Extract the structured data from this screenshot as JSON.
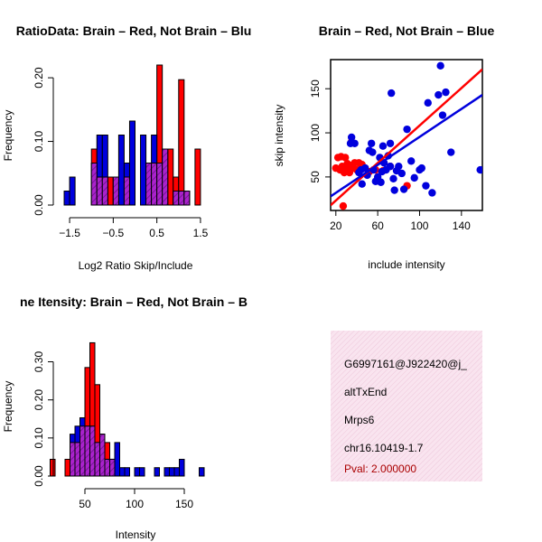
{
  "colors": {
    "red": "#ff0000",
    "blue": "#0000dd",
    "overlap": "#aa22cc",
    "info_bg": "#f7dcea",
    "pval": "#aa0000"
  },
  "chart_data": [
    {
      "type": "bar",
      "subtype": "histogram-overlay",
      "title": "RatioData: Brain – Red, Not Brain – Blu",
      "xlabel": "Log2 Ratio Skip/Include",
      "ylabel": "Frequency",
      "xlim": [
        -1.75,
        1.75
      ],
      "ylim": [
        0,
        0.22
      ],
      "xticks": [
        -1.5,
        -0.5,
        0.5,
        1.5
      ],
      "xtick_labels": [
        "−1.5",
        "−0.5",
        "0.5",
        "1.5"
      ],
      "yticks": [
        0,
        0.1,
        0.2
      ],
      "ytick_labels": [
        "0.00",
        "0.10",
        "0.20"
      ],
      "bin_width": 0.125,
      "series": [
        {
          "name": "Brain",
          "color": "red",
          "bins": [
            [
              -1.0,
              0.088
            ],
            [
              -0.875,
              0.044
            ],
            [
              -0.75,
              0.044
            ],
            [
              -0.625,
              0.044
            ],
            [
              -0.5,
              0.044
            ],
            [
              -0.25,
              0.044
            ],
            [
              0.25,
              0.066
            ],
            [
              0.375,
              0.066
            ],
            [
              0.5,
              0.22
            ],
            [
              0.625,
              0.088
            ],
            [
              0.75,
              0.088
            ],
            [
              0.875,
              0.044
            ],
            [
              1.0,
              0.197
            ],
            [
              1.125,
              0.022
            ],
            [
              1.375,
              0.088
            ]
          ]
        },
        {
          "name": "Not Brain",
          "color": "blue",
          "bins": [
            [
              -1.625,
              0.022
            ],
            [
              -1.5,
              0.044
            ],
            [
              -1.0,
              0.066
            ],
            [
              -0.875,
              0.11
            ],
            [
              -0.75,
              0.11
            ],
            [
              -0.5,
              0.044
            ],
            [
              -0.375,
              0.11
            ],
            [
              -0.25,
              0.066
            ],
            [
              -0.125,
              0.132
            ],
            [
              0.125,
              0.11
            ],
            [
              0.25,
              0.066
            ],
            [
              0.375,
              0.11
            ],
            [
              0.5,
              0.066
            ],
            [
              0.625,
              0.088
            ],
            [
              0.875,
              0.022
            ],
            [
              1.0,
              0.022
            ],
            [
              1.125,
              0.022
            ]
          ]
        }
      ]
    },
    {
      "type": "scatter",
      "title": "Brain – Red, Not Brain – Blue",
      "xlabel": "include intensity",
      "ylabel": "skip intensity",
      "xlim": [
        15,
        160
      ],
      "ylim": [
        12,
        183
      ],
      "xticks": [
        20,
        60,
        100,
        140
      ],
      "yticks": [
        50,
        100,
        150
      ],
      "series": [
        {
          "name": "Brain",
          "color": "red",
          "points": [
            [
              20,
              60
            ],
            [
              22,
              72
            ],
            [
              24,
              58
            ],
            [
              25,
              73
            ],
            [
              26,
              62
            ],
            [
              27,
              17
            ],
            [
              28,
              55
            ],
            [
              29,
              72
            ],
            [
              30,
              60
            ],
            [
              31,
              65
            ],
            [
              32,
              58
            ],
            [
              33,
              55
            ],
            [
              34,
              63
            ],
            [
              35,
              90
            ],
            [
              36,
              60
            ],
            [
              38,
              66
            ],
            [
              40,
              58
            ],
            [
              42,
              66
            ],
            [
              45,
              64
            ],
            [
              48,
              60
            ],
            [
              52,
              56
            ],
            [
              58,
              58
            ],
            [
              65,
              57
            ],
            [
              72,
              62
            ],
            [
              88,
              40
            ]
          ],
          "fit": [
            [
              15,
              18
            ],
            [
              160,
              172
            ]
          ]
        },
        {
          "name": "Not Brain",
          "color": "blue",
          "points": [
            [
              35,
              95
            ],
            [
              38,
              88
            ],
            [
              42,
              55
            ],
            [
              45,
              42
            ],
            [
              48,
              60
            ],
            [
              50,
              52
            ],
            [
              52,
              80
            ],
            [
              54,
              88
            ],
            [
              55,
              78
            ],
            [
              56,
              58
            ],
            [
              58,
              45
            ],
            [
              60,
              50
            ],
            [
              62,
              72
            ],
            [
              64,
              56
            ],
            [
              65,
              85
            ],
            [
              66,
              66
            ],
            [
              68,
              58
            ],
            [
              70,
              74
            ],
            [
              72,
              62
            ],
            [
              73,
              145
            ],
            [
              75,
              48
            ],
            [
              76,
              35
            ],
            [
              78,
              57
            ],
            [
              80,
              62
            ],
            [
              83,
              54
            ],
            [
              85,
              36
            ],
            [
              88,
              104
            ],
            [
              92,
              68
            ],
            [
              95,
              49
            ],
            [
              100,
              58
            ],
            [
              102,
              60
            ],
            [
              106,
              40
            ],
            [
              108,
              134
            ],
            [
              112,
              32
            ],
            [
              118,
              143
            ],
            [
              120,
              176
            ],
            [
              122,
              120
            ],
            [
              125,
              146
            ],
            [
              130,
              78
            ],
            [
              158,
              58
            ],
            [
              34,
              88
            ],
            [
              44,
              58
            ],
            [
              63,
              44
            ],
            [
              72,
              88
            ]
          ],
          "fit": [
            [
              15,
              28
            ],
            [
              160,
              143
            ]
          ]
        }
      ]
    },
    {
      "type": "bar",
      "subtype": "histogram-overlay",
      "title": "ne Itensity: Brain – Red, Not Brain – B",
      "xlabel": "Intensity",
      "ylabel": "Frequency",
      "xlim": [
        10,
        190
      ],
      "ylim": [
        0,
        0.37
      ],
      "xticks": [
        50,
        100,
        150
      ],
      "yticks": [
        0,
        0.1,
        0.2,
        0.3
      ],
      "ytick_labels": [
        "0.00",
        "0.10",
        "0.20",
        "0.30"
      ],
      "bin_width": 5,
      "series": [
        {
          "name": "Brain",
          "color": "red",
          "bins": [
            [
              15,
              0.044
            ],
            [
              30,
              0.044
            ],
            [
              35,
              0.088
            ],
            [
              40,
              0.088
            ],
            [
              45,
              0.131
            ],
            [
              50,
              0.285
            ],
            [
              55,
              0.35
            ],
            [
              60,
              0.24
            ],
            [
              65,
              0.11
            ],
            [
              70,
              0.088
            ],
            [
              75,
              0.044
            ]
          ]
        },
        {
          "name": "Not Brain",
          "color": "blue",
          "bins": [
            [
              35,
              0.11
            ],
            [
              40,
              0.131
            ],
            [
              45,
              0.153
            ],
            [
              50,
              0.131
            ],
            [
              55,
              0.131
            ],
            [
              60,
              0.088
            ],
            [
              65,
              0.11
            ],
            [
              70,
              0.044
            ],
            [
              75,
              0.044
            ],
            [
              80,
              0.088
            ],
            [
              85,
              0.022
            ],
            [
              90,
              0.022
            ],
            [
              100,
              0.022
            ],
            [
              105,
              0.022
            ],
            [
              120,
              0.022
            ],
            [
              130,
              0.022
            ],
            [
              135,
              0.022
            ],
            [
              140,
              0.022
            ],
            [
              145,
              0.044
            ],
            [
              165,
              0.022
            ]
          ]
        }
      ]
    }
  ],
  "info": {
    "lines": [
      "G6997161@J922420@j_",
      "altTxEnd",
      "Mrps6",
      "chr16.10419-1.7"
    ],
    "pval": "Pval: 2.000000"
  }
}
